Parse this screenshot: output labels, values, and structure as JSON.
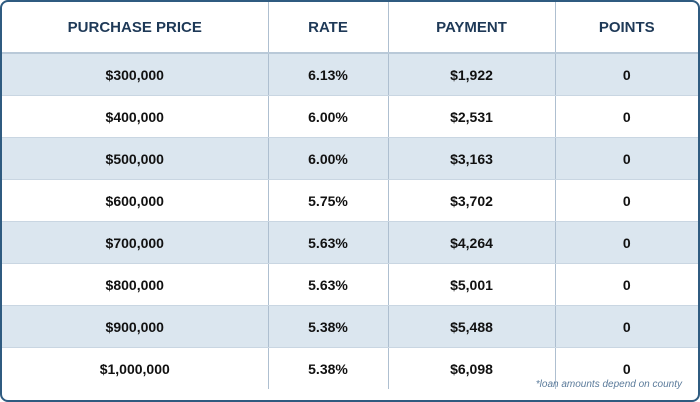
{
  "table": {
    "columns": [
      "PURCHASE PRICE",
      "RATE",
      "PAYMENT",
      "POINTS"
    ],
    "rows": [
      [
        "$300,000",
        "6.13%",
        "$1,922",
        "0"
      ],
      [
        "$400,000",
        "6.00%",
        "$2,531",
        "0"
      ],
      [
        "$500,000",
        "6.00%",
        "$3,163",
        "0"
      ],
      [
        "$600,000",
        "5.75%",
        "$3,702",
        "0"
      ],
      [
        "$700,000",
        "5.63%",
        "$4,264",
        "0"
      ],
      [
        "$800,000",
        "5.63%",
        "$5,001",
        "0"
      ],
      [
        "$900,000",
        "5.38%",
        "$5,488",
        "0"
      ],
      [
        "$1,000,000",
        "5.38%",
        "$6,098",
        "0"
      ]
    ]
  },
  "footnote": "*loan amounts depend on county"
}
